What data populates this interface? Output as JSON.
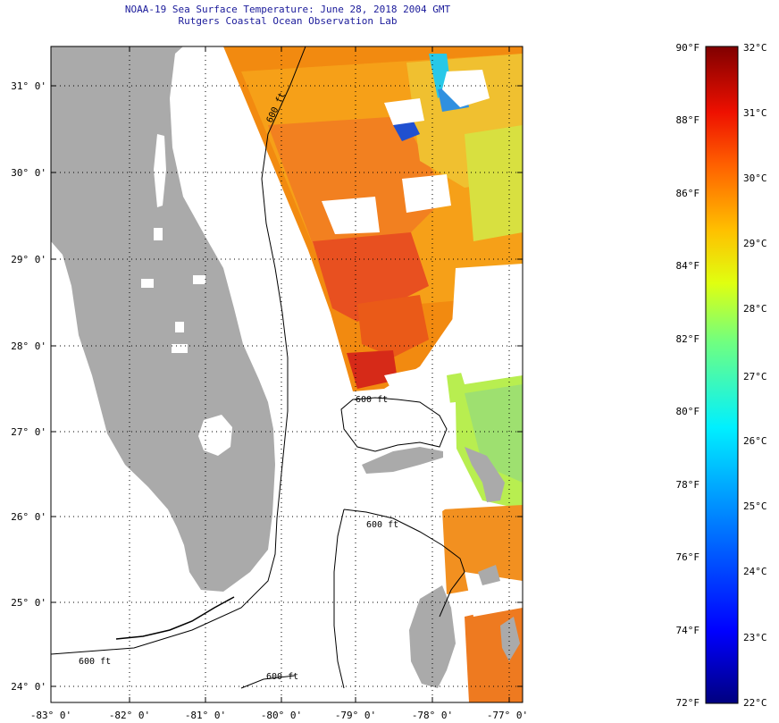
{
  "title": {
    "line1": "NOAA-19 Sea Surface Temperature:  June 28, 2018 2004 GMT",
    "line2": "Rutgers Coastal Ocean Observation Lab"
  },
  "axes": {
    "lat_labels": [
      "31° 0'",
      "30° 0'",
      "29° 0'",
      "28° 0'",
      "27° 0'",
      "26° 0'",
      "25° 0'",
      "24° 0'"
    ],
    "lon_labels": [
      "-83° 0'",
      "-82° 0'",
      "-81° 0'",
      "-80° 0'",
      "-79° 0'",
      "-78° 0'",
      "-77° 0'"
    ]
  },
  "contours": {
    "label": "600 ft"
  },
  "colorbar": {
    "fahrenheit_labels": [
      "90°F",
      "88°F",
      "86°F",
      "84°F",
      "82°F",
      "80°F",
      "78°F",
      "76°F",
      "74°F",
      "72°F"
    ],
    "celsius_labels": [
      "32°C",
      "31°C",
      "30°C",
      "29°C",
      "28°C",
      "27°C",
      "26°C",
      "25°C",
      "24°C",
      "23°C",
      "22°C"
    ]
  },
  "colors": {
    "land": "#aaaaaa",
    "title_text": "#1a1a9a"
  }
}
